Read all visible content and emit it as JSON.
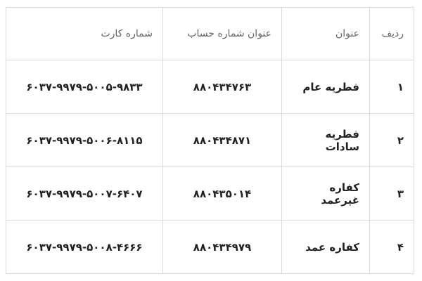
{
  "table": {
    "header": [
      "ردیف",
      "عنوان",
      "عنوان شماره حساب",
      "شماره کارت"
    ],
    "rows": [
      [
        "۱",
        "فطریه عام",
        "۸۸۰۴۳۴۷۶۳",
        "۶۰۳۷-۹۹۷۹-۵۰۰۵-۹۸۳۳"
      ],
      [
        "۲",
        "فطریه سادات",
        "۸۸۰۴۳۴۸۷۱",
        "۶۰۳۷-۹۹۷۹-۵۰۰۶-۸۱۱۵"
      ],
      [
        "۳",
        "کفاره غیرعمد",
        "۸۸۰۴۳۵۰۱۴",
        "۶۰۳۷-۹۹۷۹-۵۰۰۷-۶۴۰۷"
      ],
      [
        "۴",
        "کفاره عمد",
        "۸۸۰۴۳۴۹۷۹",
        "۶۰۳۷-۹۹۷۹-۵۰۰۸-۴۶۶۶"
      ]
    ]
  }
}
